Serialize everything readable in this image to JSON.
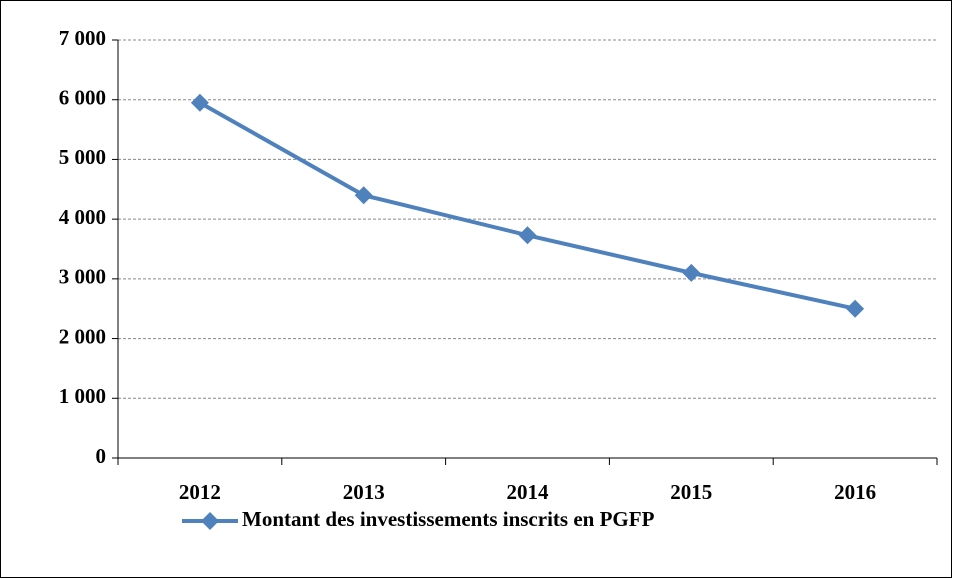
{
  "chart_data": {
    "type": "line",
    "categories": [
      "2012",
      "2013",
      "2014",
      "2015",
      "2016"
    ],
    "series": [
      {
        "name": "Montant des investissements inscrits en PGFP",
        "color": "#4f81bd",
        "values": [
          5950,
          4400,
          3730,
          3100,
          2500
        ]
      }
    ],
    "ylim": [
      0,
      7000
    ],
    "yticks": [
      0,
      {
        "value": 1000,
        "label": "1 000"
      },
      {
        "value": 2000,
        "label": "2 000"
      },
      {
        "value": 3000,
        "label": "3 000"
      },
      {
        "value": 4000,
        "label": "4 000"
      },
      {
        "value": 5000,
        "label": "5 000"
      },
      {
        "value": 6000,
        "label": "6 000"
      },
      {
        "value": 7000,
        "label": "7 000"
      }
    ],
    "grid": true,
    "legend": "bottom"
  }
}
